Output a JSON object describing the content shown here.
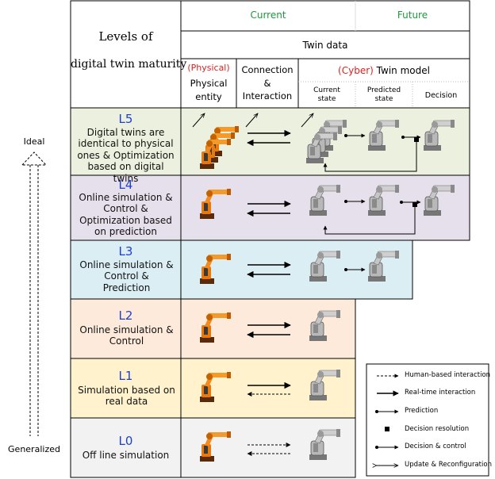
{
  "header": {
    "title_line1": "Levels of",
    "title_line2": "digital twin maturity",
    "current": "Current",
    "future": "Future",
    "twin_data": "Twin data",
    "physical_tag": "(Physical)",
    "physical_entity": "Physical entity",
    "connection": "Connection & Interaction",
    "cyber_tag": "(Cyber)",
    "twin_model": "Twin model",
    "current_state": "Current state",
    "predicted_state": "Predicted state",
    "decision": "Decision"
  },
  "axis": {
    "top": "Ideal",
    "bottom": "Generalized"
  },
  "levels": [
    {
      "id": "L5",
      "desc": "Digital twins are identical to physical ones & Optimization based on digital twins",
      "color": "#ebf1de"
    },
    {
      "id": "L4",
      "desc": "Online simulation & Control & Optimization based on prediction",
      "color": "#e6e0ec"
    },
    {
      "id": "L3",
      "desc": "Online simulation & Control & Prediction",
      "color": "#dbeef4"
    },
    {
      "id": "L2",
      "desc": "Online simulation & Control",
      "color": "#fdeada"
    },
    {
      "id": "L1",
      "desc": "Simulation based on real data",
      "color": "#fff2cc"
    },
    {
      "id": "L0",
      "desc": "Off line simulation",
      "color": "#f2f2f2"
    }
  ],
  "legend": [
    "Human-based interaction",
    "Real-time interaction",
    "Prediction",
    "Decision resolution",
    "Decision & control",
    "Update & Reconfiguration"
  ]
}
